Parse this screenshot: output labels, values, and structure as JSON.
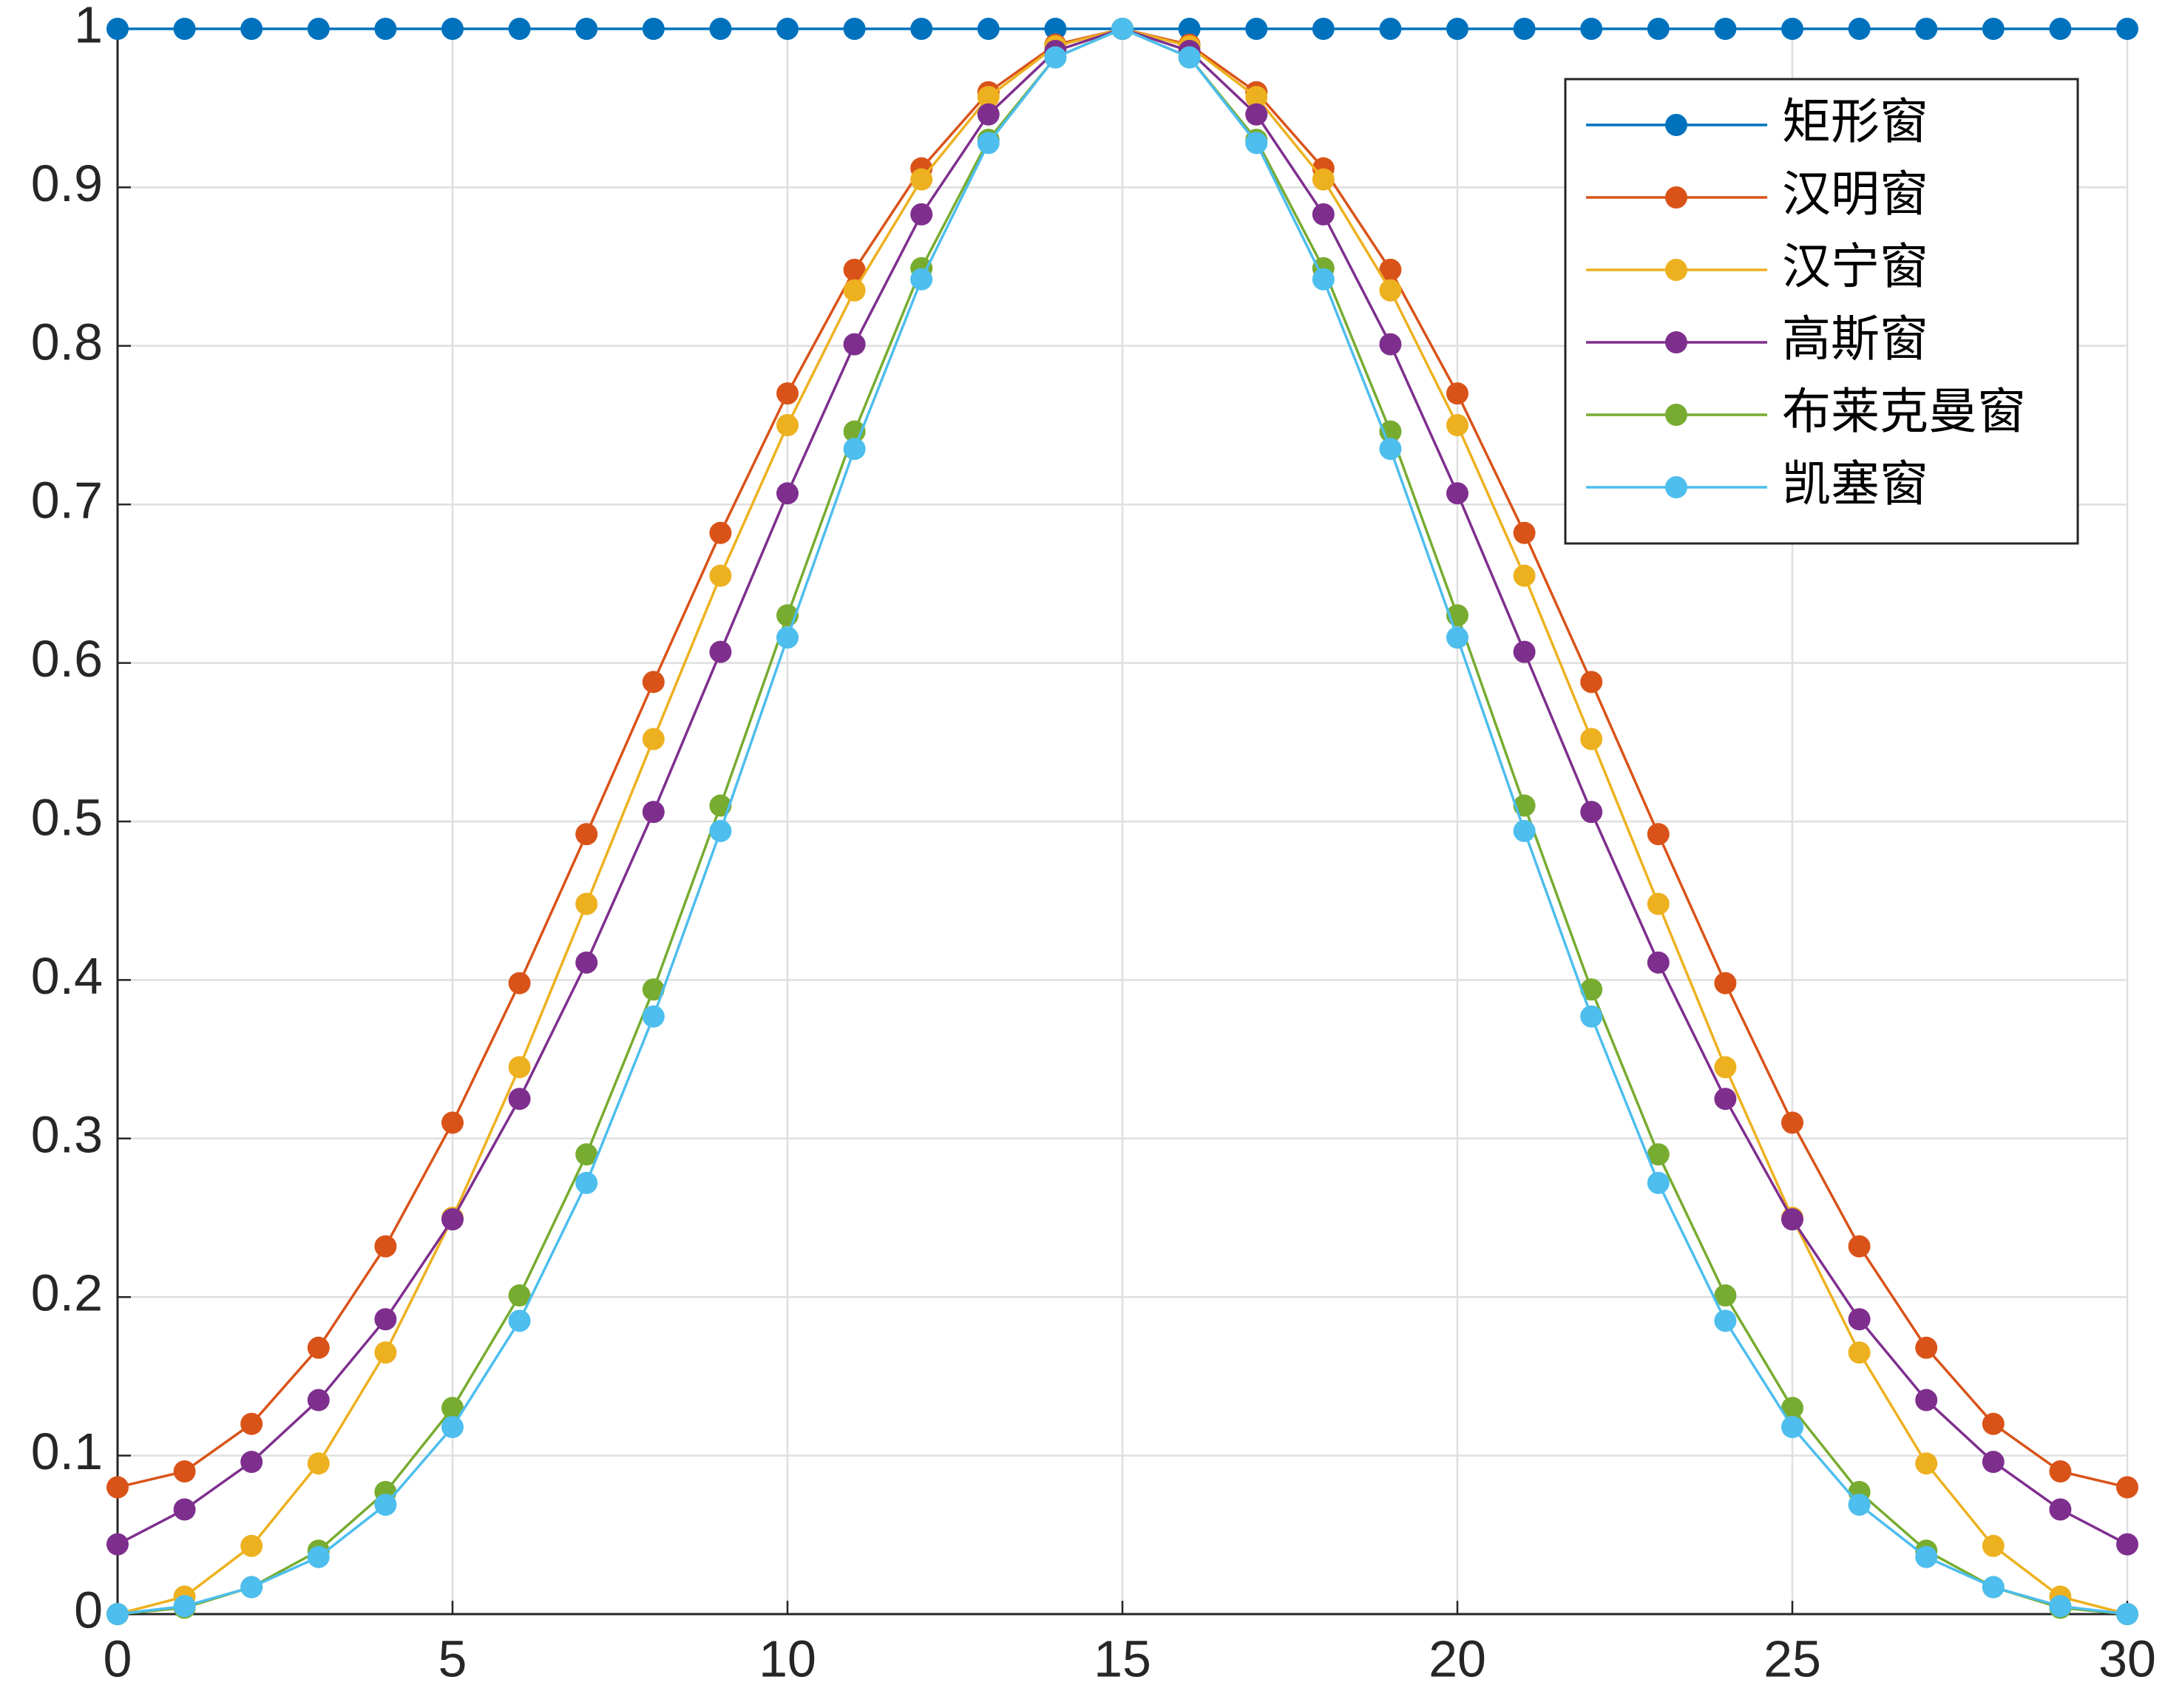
{
  "chart_data": {
    "type": "line",
    "x": [
      0,
      1,
      2,
      3,
      4,
      5,
      6,
      7,
      8,
      9,
      10,
      11,
      12,
      13,
      14,
      15,
      16,
      17,
      18,
      19,
      20,
      21,
      22,
      23,
      24,
      25,
      26,
      27,
      28,
      29,
      30
    ],
    "series": [
      {
        "name": "矩形窗",
        "color": "#0072BD",
        "values": [
          1,
          1,
          1,
          1,
          1,
          1,
          1,
          1,
          1,
          1,
          1,
          1,
          1,
          1,
          1,
          1,
          1,
          1,
          1,
          1,
          1,
          1,
          1,
          1,
          1,
          1,
          1,
          1,
          1,
          1,
          1
        ]
      },
      {
        "name": "汉明窗",
        "color": "#D95319",
        "values": [
          0.08,
          0.09,
          0.12,
          0.168,
          0.232,
          0.31,
          0.398,
          0.492,
          0.588,
          0.682,
          0.77,
          0.848,
          0.912,
          0.96,
          0.99,
          1,
          0.99,
          0.96,
          0.912,
          0.848,
          0.77,
          0.682,
          0.588,
          0.492,
          0.398,
          0.31,
          0.232,
          0.168,
          0.12,
          0.09,
          0.08
        ]
      },
      {
        "name": "汉宁窗",
        "color": "#EDB120",
        "values": [
          0,
          0.011,
          0.043,
          0.095,
          0.165,
          0.25,
          0.345,
          0.448,
          0.552,
          0.655,
          0.75,
          0.835,
          0.905,
          0.957,
          0.989,
          1,
          0.989,
          0.957,
          0.905,
          0.835,
          0.75,
          0.655,
          0.552,
          0.448,
          0.345,
          0.25,
          0.165,
          0.095,
          0.043,
          0.011,
          0
        ]
      },
      {
        "name": "高斯窗",
        "color": "#7E2F8E",
        "values": [
          0.044,
          0.066,
          0.096,
          0.135,
          0.186,
          0.249,
          0.325,
          0.411,
          0.506,
          0.607,
          0.707,
          0.801,
          0.883,
          0.946,
          0.986,
          1,
          0.986,
          0.946,
          0.883,
          0.801,
          0.707,
          0.607,
          0.506,
          0.411,
          0.325,
          0.249,
          0.186,
          0.135,
          0.096,
          0.066,
          0.044
        ]
      },
      {
        "name": "布莱克曼窗",
        "color": "#77AC30",
        "values": [
          0,
          0.004,
          0.017,
          0.04,
          0.077,
          0.13,
          0.201,
          0.29,
          0.394,
          0.51,
          0.63,
          0.746,
          0.849,
          0.93,
          0.982,
          1,
          0.982,
          0.93,
          0.849,
          0.746,
          0.63,
          0.51,
          0.394,
          0.29,
          0.201,
          0.13,
          0.077,
          0.04,
          0.017,
          0.004,
          0
        ]
      },
      {
        "name": "凯塞窗",
        "color": "#4DBEEE",
        "values": [
          0,
          0.005,
          0.017,
          0.036,
          0.069,
          0.118,
          0.185,
          0.272,
          0.377,
          0.494,
          0.616,
          0.735,
          0.842,
          0.928,
          0.982,
          1,
          0.982,
          0.928,
          0.842,
          0.735,
          0.616,
          0.494,
          0.377,
          0.272,
          0.185,
          0.118,
          0.069,
          0.036,
          0.017,
          0.005,
          0
        ]
      }
    ],
    "xlim": [
      0,
      30
    ],
    "xticks": [
      0,
      5,
      10,
      15,
      20,
      25,
      30
    ],
    "ylim": [
      0,
      1
    ],
    "yticks": [
      0,
      0.1,
      0.2,
      0.3,
      0.4,
      0.5,
      0.6,
      0.7,
      0.8,
      0.9,
      1
    ],
    "grid": true,
    "legend": "upper right"
  }
}
